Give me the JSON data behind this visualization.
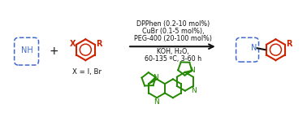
{
  "bg_color": "#ffffff",
  "blue_color": "#4169cc",
  "red_color": "#cc2200",
  "green_color": "#228800",
  "black_color": "#111111",
  "line1": "DPPhen (0.2-10 mol%)",
  "line2": "CuBr (0.1-5 mol%),",
  "line3": "PEG-400 (20-100 mol%)",
  "line4": "KOH, H₂O,",
  "line5": "60-135 ºC, 3-60 h",
  "xlabel": "X = I, Br",
  "figsize": [
    3.78,
    1.71
  ],
  "dpi": 100
}
